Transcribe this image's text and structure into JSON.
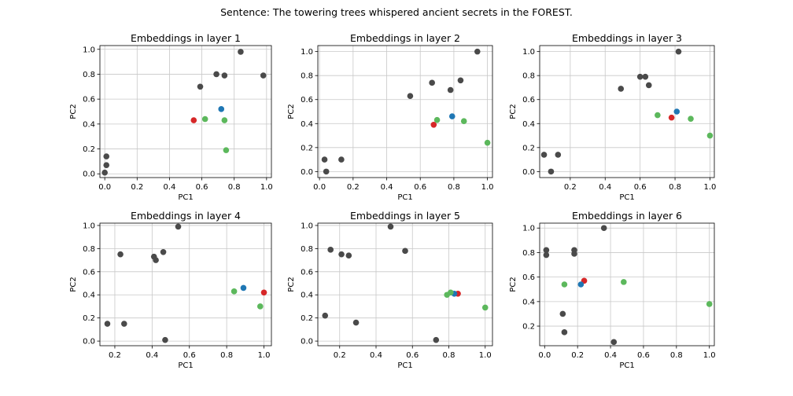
{
  "figure": {
    "suptitle": "Sentence: The towering trees whispered ancient secrets in the FOREST."
  },
  "colors": {
    "gray": "#4a4a4a",
    "red": "#d62728",
    "blue": "#1f77b4",
    "green": "#5cb85c",
    "grid": "#c8c8c8"
  },
  "chart_data": [
    {
      "type": "scatter",
      "title": "Embeddings in layer 1",
      "xlabel": "PC1",
      "ylabel": "PC2",
      "xlim": [
        -0.03,
        1.03
      ],
      "ylim": [
        -0.03,
        1.03
      ],
      "xticks": [
        0.0,
        0.2,
        0.4,
        0.6,
        0.8,
        1.0
      ],
      "yticks": [
        0.0,
        0.2,
        0.4,
        0.6,
        0.8,
        1.0
      ],
      "grid": true,
      "points": [
        {
          "x": 0.0,
          "y": 0.01,
          "c": "gray"
        },
        {
          "x": 0.01,
          "y": 0.07,
          "c": "gray"
        },
        {
          "x": 0.01,
          "y": 0.14,
          "c": "gray"
        },
        {
          "x": 0.59,
          "y": 0.7,
          "c": "gray"
        },
        {
          "x": 0.69,
          "y": 0.8,
          "c": "gray"
        },
        {
          "x": 0.74,
          "y": 0.79,
          "c": "gray"
        },
        {
          "x": 0.84,
          "y": 0.98,
          "c": "gray"
        },
        {
          "x": 0.98,
          "y": 0.79,
          "c": "gray"
        },
        {
          "x": 0.55,
          "y": 0.43,
          "c": "red"
        },
        {
          "x": 0.72,
          "y": 0.52,
          "c": "blue"
        },
        {
          "x": 0.62,
          "y": 0.44,
          "c": "green"
        },
        {
          "x": 0.74,
          "y": 0.43,
          "c": "green"
        },
        {
          "x": 0.75,
          "y": 0.19,
          "c": "green"
        }
      ]
    },
    {
      "type": "scatter",
      "title": "Embeddings in layer 2",
      "xlabel": "PC1",
      "ylabel": "PC2",
      "xlim": [
        -0.01,
        1.03
      ],
      "ylim": [
        -0.05,
        1.05
      ],
      "xticks": [
        0.0,
        0.2,
        0.4,
        0.6,
        0.8,
        1.0
      ],
      "yticks": [
        0.0,
        0.2,
        0.4,
        0.6,
        0.8,
        1.0
      ],
      "grid": true,
      "points": [
        {
          "x": 0.03,
          "y": 0.1,
          "c": "gray"
        },
        {
          "x": 0.04,
          "y": 0.0,
          "c": "gray"
        },
        {
          "x": 0.13,
          "y": 0.1,
          "c": "gray"
        },
        {
          "x": 0.54,
          "y": 0.63,
          "c": "gray"
        },
        {
          "x": 0.67,
          "y": 0.74,
          "c": "gray"
        },
        {
          "x": 0.78,
          "y": 0.68,
          "c": "gray"
        },
        {
          "x": 0.84,
          "y": 0.76,
          "c": "gray"
        },
        {
          "x": 0.94,
          "y": 1.0,
          "c": "gray"
        },
        {
          "x": 0.68,
          "y": 0.39,
          "c": "red"
        },
        {
          "x": 0.79,
          "y": 0.46,
          "c": "blue"
        },
        {
          "x": 0.7,
          "y": 0.43,
          "c": "green"
        },
        {
          "x": 0.86,
          "y": 0.42,
          "c": "green"
        },
        {
          "x": 1.0,
          "y": 0.24,
          "c": "green"
        }
      ]
    },
    {
      "type": "scatter",
      "title": "Embeddings in layer 3",
      "xlabel": "PC1",
      "ylabel": "PC2",
      "xlim": [
        0.025,
        1.025
      ],
      "ylim": [
        -0.05,
        1.05
      ],
      "xticks": [
        0.2,
        0.4,
        0.6,
        0.8,
        1.0
      ],
      "yticks": [
        0.0,
        0.2,
        0.4,
        0.6,
        0.8,
        1.0
      ],
      "grid": true,
      "points": [
        {
          "x": 0.05,
          "y": 0.14,
          "c": "gray"
        },
        {
          "x": 0.09,
          "y": 0.0,
          "c": "gray"
        },
        {
          "x": 0.13,
          "y": 0.14,
          "c": "gray"
        },
        {
          "x": 0.49,
          "y": 0.69,
          "c": "gray"
        },
        {
          "x": 0.6,
          "y": 0.79,
          "c": "gray"
        },
        {
          "x": 0.63,
          "y": 0.79,
          "c": "gray"
        },
        {
          "x": 0.65,
          "y": 0.72,
          "c": "gray"
        },
        {
          "x": 0.82,
          "y": 1.0,
          "c": "gray"
        },
        {
          "x": 0.78,
          "y": 0.45,
          "c": "red"
        },
        {
          "x": 0.81,
          "y": 0.5,
          "c": "blue"
        },
        {
          "x": 0.7,
          "y": 0.47,
          "c": "green"
        },
        {
          "x": 0.89,
          "y": 0.44,
          "c": "green"
        },
        {
          "x": 1.0,
          "y": 0.3,
          "c": "green"
        }
      ]
    },
    {
      "type": "scatter",
      "title": "Embeddings in layer 4",
      "xlabel": "PC1",
      "ylabel": "PC2",
      "xlim": [
        0.12,
        1.04
      ],
      "ylim": [
        -0.04,
        1.02
      ],
      "xticks": [
        0.2,
        0.4,
        0.6,
        0.8,
        1.0
      ],
      "yticks": [
        0.0,
        0.2,
        0.4,
        0.6,
        0.8,
        1.0
      ],
      "grid": true,
      "points": [
        {
          "x": 0.16,
          "y": 0.15,
          "c": "gray"
        },
        {
          "x": 0.23,
          "y": 0.75,
          "c": "gray"
        },
        {
          "x": 0.25,
          "y": 0.15,
          "c": "gray"
        },
        {
          "x": 0.41,
          "y": 0.73,
          "c": "gray"
        },
        {
          "x": 0.42,
          "y": 0.7,
          "c": "gray"
        },
        {
          "x": 0.46,
          "y": 0.77,
          "c": "gray"
        },
        {
          "x": 0.47,
          "y": 0.01,
          "c": "gray"
        },
        {
          "x": 0.54,
          "y": 0.99,
          "c": "gray"
        },
        {
          "x": 1.0,
          "y": 0.42,
          "c": "red"
        },
        {
          "x": 0.89,
          "y": 0.46,
          "c": "blue"
        },
        {
          "x": 0.84,
          "y": 0.43,
          "c": "green"
        },
        {
          "x": 0.98,
          "y": 0.3,
          "c": "green"
        }
      ]
    },
    {
      "type": "scatter",
      "title": "Embeddings in layer 5",
      "xlabel": "PC1",
      "ylabel": "PC2",
      "xlim": [
        0.08,
        1.04
      ],
      "ylim": [
        -0.04,
        1.02
      ],
      "xticks": [
        0.2,
        0.4,
        0.6,
        0.8,
        1.0
      ],
      "yticks": [
        0.0,
        0.2,
        0.4,
        0.6,
        0.8,
        1.0
      ],
      "grid": true,
      "points": [
        {
          "x": 0.12,
          "y": 0.22,
          "c": "gray"
        },
        {
          "x": 0.15,
          "y": 0.79,
          "c": "gray"
        },
        {
          "x": 0.21,
          "y": 0.75,
          "c": "gray"
        },
        {
          "x": 0.25,
          "y": 0.74,
          "c": "gray"
        },
        {
          "x": 0.29,
          "y": 0.16,
          "c": "gray"
        },
        {
          "x": 0.48,
          "y": 0.99,
          "c": "gray"
        },
        {
          "x": 0.56,
          "y": 0.78,
          "c": "gray"
        },
        {
          "x": 0.73,
          "y": 0.01,
          "c": "gray"
        },
        {
          "x": 0.85,
          "y": 0.41,
          "c": "red"
        },
        {
          "x": 0.83,
          "y": 0.41,
          "c": "blue"
        },
        {
          "x": 0.79,
          "y": 0.4,
          "c": "green"
        },
        {
          "x": 0.81,
          "y": 0.42,
          "c": "green"
        },
        {
          "x": 1.0,
          "y": 0.29,
          "c": "green"
        }
      ]
    },
    {
      "type": "scatter",
      "title": "Embeddings in layer 6",
      "xlabel": "PC1",
      "ylabel": "PC2",
      "xlim": [
        -0.03,
        1.03
      ],
      "ylim": [
        0.04,
        1.04
      ],
      "xticks": [
        0.0,
        0.2,
        0.4,
        0.6,
        0.8,
        1.0
      ],
      "yticks": [
        0.2,
        0.4,
        0.6,
        0.8,
        1.0
      ],
      "grid": true,
      "points": [
        {
          "x": 0.01,
          "y": 0.82,
          "c": "gray"
        },
        {
          "x": 0.01,
          "y": 0.78,
          "c": "gray"
        },
        {
          "x": 0.11,
          "y": 0.3,
          "c": "gray"
        },
        {
          "x": 0.12,
          "y": 0.15,
          "c": "gray"
        },
        {
          "x": 0.18,
          "y": 0.82,
          "c": "gray"
        },
        {
          "x": 0.18,
          "y": 0.79,
          "c": "gray"
        },
        {
          "x": 0.36,
          "y": 1.0,
          "c": "gray"
        },
        {
          "x": 0.42,
          "y": 0.07,
          "c": "gray"
        },
        {
          "x": 0.24,
          "y": 0.57,
          "c": "red"
        },
        {
          "x": 0.22,
          "y": 0.54,
          "c": "blue"
        },
        {
          "x": 0.12,
          "y": 0.54,
          "c": "green"
        },
        {
          "x": 0.48,
          "y": 0.56,
          "c": "green"
        },
        {
          "x": 1.0,
          "y": 0.38,
          "c": "green"
        }
      ]
    }
  ]
}
